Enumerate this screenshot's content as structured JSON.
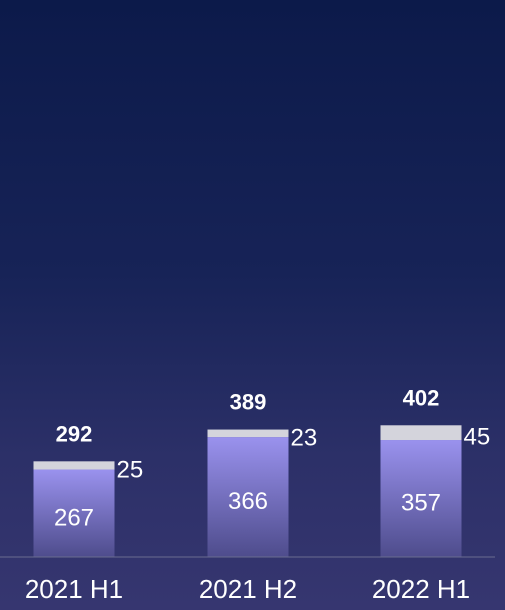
{
  "chart_data": {
    "type": "bar",
    "stacked": true,
    "categories": [
      "2021 H1",
      "2021 H2",
      "2022 H1"
    ],
    "series": [
      {
        "values": [
          267,
          366,
          357
        ],
        "color": "#9a92ee"
      },
      {
        "values": [
          25,
          23,
          45
        ],
        "color": "#d4d4dc"
      }
    ],
    "totals": [
      292,
      389,
      402
    ],
    "title": "",
    "xlabel": "",
    "ylabel": "",
    "ylim": [
      0,
      1700
    ],
    "grid": false,
    "axis_color": "#6a6d90",
    "text_color": "#ffffff"
  }
}
